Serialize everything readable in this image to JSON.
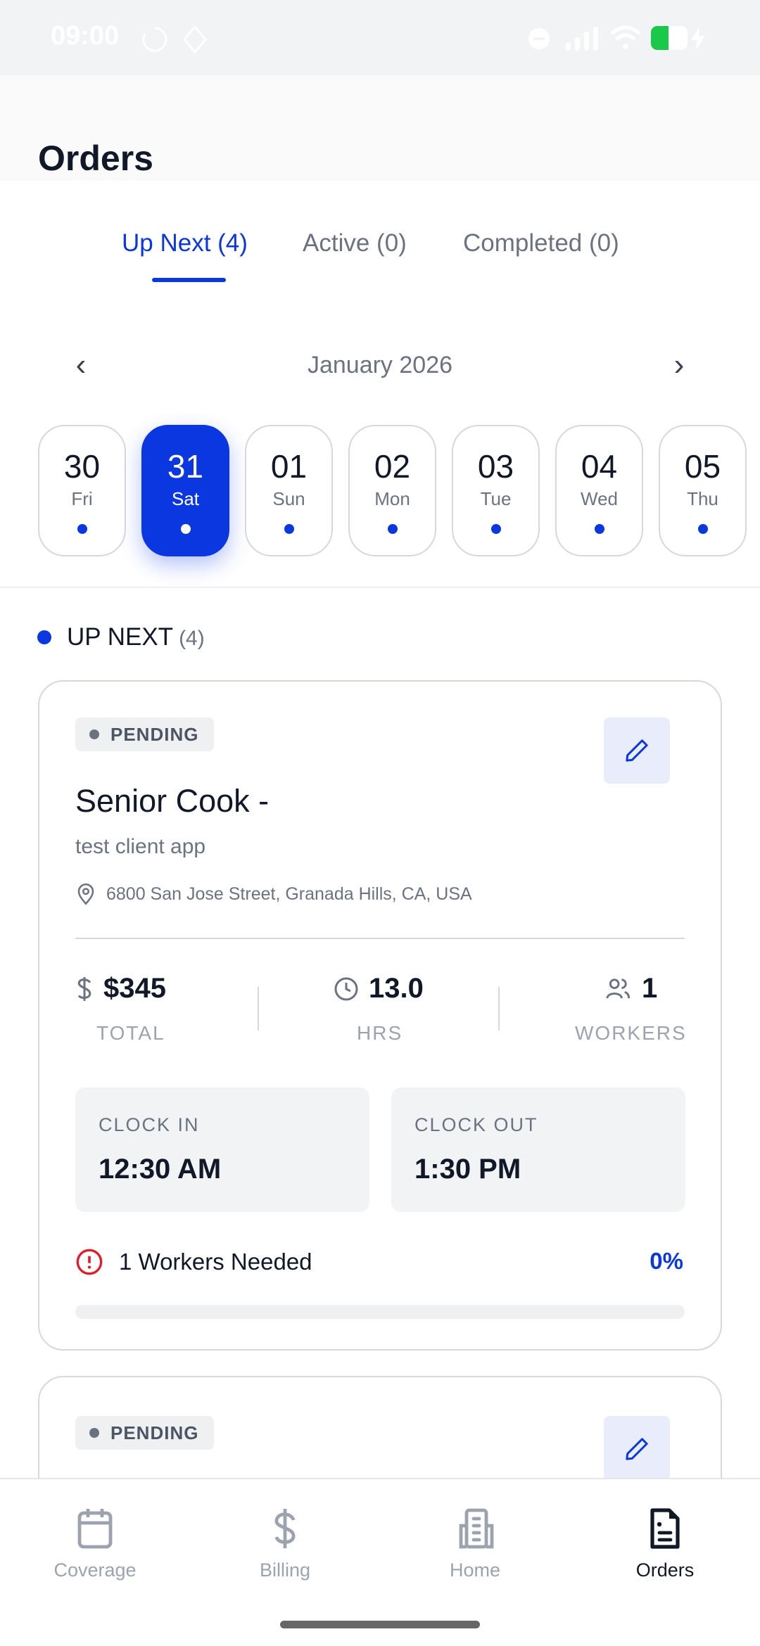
{
  "status_bar": {
    "time": "09:00",
    "battery_color": "#1ac84a"
  },
  "header": {
    "title": "Orders"
  },
  "tabs": [
    {
      "label": "Up Next (4)",
      "active": true
    },
    {
      "label": "Active (0)"
    },
    {
      "label": "Completed (0)"
    }
  ],
  "calendar": {
    "month": "January 2026",
    "prev_icon": "chevron-left",
    "next_icon": "chevron-right",
    "days": [
      {
        "num": "30",
        "day": "Fri"
      },
      {
        "num": "31",
        "day": "Sat",
        "selected": true
      },
      {
        "num": "01",
        "day": "Sun"
      },
      {
        "num": "02",
        "day": "Mon"
      },
      {
        "num": "03",
        "day": "Tue"
      },
      {
        "num": "04",
        "day": "Wed"
      },
      {
        "num": "05",
        "day": "Thu"
      }
    ]
  },
  "section": {
    "label": "UP NEXT",
    "count": "(4)"
  },
  "orders": [
    {
      "status": "PENDING",
      "title": "Senior Cook -",
      "client": "test client app",
      "address": "6800 San Jose Street, Granada Hills, CA, USA",
      "total": "$345",
      "total_label": "TOTAL",
      "hours": "13.0",
      "hours_label": "HRS",
      "workers": "1",
      "workers_label": "WORKERS",
      "clock_in_label": "CLOCK IN",
      "clock_in": "12:30 AM",
      "clock_out_label": "CLOCK OUT",
      "clock_out": "1:30 PM",
      "needed": "1 Workers Needed",
      "progress_label": "0%",
      "progress": 0
    },
    {
      "status": "PENDING"
    }
  ],
  "colors": {
    "accent": "#0a37e0",
    "alert": "#e11d2a"
  },
  "nav": [
    {
      "label": "Coverage",
      "icon": "calendar"
    },
    {
      "label": "Billing",
      "icon": "dollar"
    },
    {
      "label": "Home",
      "icon": "building"
    },
    {
      "label": "Orders",
      "icon": "document",
      "active": true
    }
  ]
}
